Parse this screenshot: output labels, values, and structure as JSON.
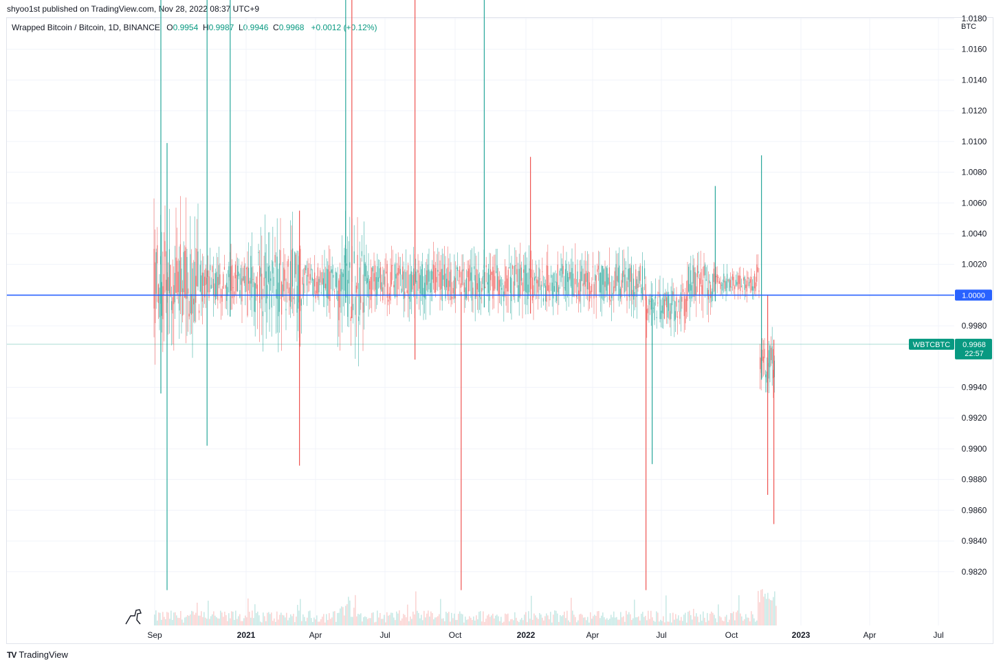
{
  "header": {
    "published": "shyoo1st published on TradingView.com, Nov 28, 2022 08:37 UTC+9"
  },
  "legend": {
    "symbol": "Wrapped Bitcoin / Bitcoin, 1D, BINANCE",
    "o_label": "O",
    "o_value": "0.9954",
    "h_label": "H",
    "h_value": "0.9987",
    "l_label": "L",
    "l_value": "0.9946",
    "c_label": "C",
    "c_value": "0.9968",
    "change": "+0.0012 (+0.12%)"
  },
  "footer": {
    "brand": "TradingView",
    "logo": "TV"
  },
  "colors": {
    "up": "#26a69a",
    "down": "#ef5350",
    "line": "#2962ff",
    "badge": "#089981",
    "grid": "#f0f3fa",
    "text": "#131722"
  },
  "chart_data": {
    "type": "candlestick",
    "title": "Wrapped Bitcoin / Bitcoin, 1D, BINANCE",
    "ylabel": "BTC",
    "ylim": [
      0.9808,
      1.0198
    ],
    "y_ticks": [
      "1.0180",
      "1.0160",
      "1.0140",
      "1.0120",
      "1.0100",
      "1.0080",
      "1.0060",
      "1.0040",
      "1.0020",
      "1.0000",
      "0.9980",
      "0.9940",
      "0.9920",
      "0.9900",
      "0.9880",
      "0.9860",
      "0.9840",
      "0.9820"
    ],
    "x_ticks": [
      {
        "label": "Sep",
        "bold": false
      },
      {
        "label": "2021",
        "bold": true
      },
      {
        "label": "Apr",
        "bold": false
      },
      {
        "label": "Jul",
        "bold": false
      },
      {
        "label": "Oct",
        "bold": false
      },
      {
        "label": "2022",
        "bold": true
      },
      {
        "label": "Apr",
        "bold": false
      },
      {
        "label": "Jul",
        "bold": false
      },
      {
        "label": "Oct",
        "bold": false
      },
      {
        "label": "2023",
        "bold": true
      },
      {
        "label": "Apr",
        "bold": false
      },
      {
        "label": "Jul",
        "bold": false
      }
    ],
    "horizontal_line": {
      "value": 1.0,
      "label": "1.0000"
    },
    "last_price": {
      "symbol": "WBTCBTC",
      "value": "0.9968",
      "countdown": "22:57"
    },
    "grid": true,
    "spikes": [
      {
        "x": "Sep 2020",
        "high": 1.0198,
        "low": 0.9936,
        "dir": "up"
      },
      {
        "x": "Sep 2020",
        "high": 1.0099,
        "low": 0.9808,
        "dir": "up"
      },
      {
        "x": "Nov 2020",
        "high": 1.0198,
        "low": 0.9902,
        "dir": "up"
      },
      {
        "x": "Dec 2020",
        "high": 1.0198,
        "low": 0.9986,
        "dir": "up"
      },
      {
        "x": "Mar 2021",
        "high": 1.0055,
        "low": 0.9889,
        "dir": "down"
      },
      {
        "x": "May 2021",
        "high": 1.0198,
        "low": 0.9995,
        "dir": "up"
      },
      {
        "x": "May 2021",
        "high": 1.0198,
        "low": 0.9985,
        "dir": "down"
      },
      {
        "x": "Aug 2021",
        "high": 1.0198,
        "low": 0.9958,
        "dir": "down"
      },
      {
        "x": "Oct 2021",
        "high": 1.0002,
        "low": 0.9808,
        "dir": "down"
      },
      {
        "x": "Nov 2021",
        "high": 1.0198,
        "low": 0.9992,
        "dir": "up"
      },
      {
        "x": "Jan 2022",
        "high": 1.009,
        "low": 0.9988,
        "dir": "down"
      },
      {
        "x": "Jun 2022",
        "high": 1.0,
        "low": 0.9808,
        "dir": "down"
      },
      {
        "x": "Jun 2022",
        "high": 0.9998,
        "low": 0.989,
        "dir": "up"
      },
      {
        "x": "Sep 2022",
        "high": 1.0071,
        "low": 0.9996,
        "dir": "up"
      },
      {
        "x": "Nov 2022",
        "high": 1.0091,
        "low": 0.9945,
        "dir": "up"
      },
      {
        "x": "Nov 2022",
        "high": 1.0,
        "low": 0.987,
        "dir": "down"
      },
      {
        "x": "Nov 2022",
        "high": 0.9971,
        "low": 0.9851,
        "dir": "down"
      }
    ]
  }
}
